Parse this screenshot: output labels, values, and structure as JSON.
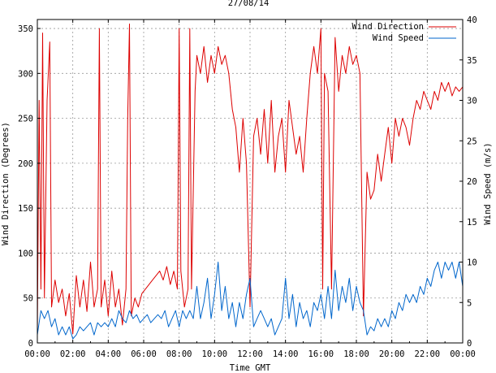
{
  "chart_data": {
    "type": "line",
    "title": "27/08/14",
    "xlabel": "Time GMT",
    "ylabel": "Wind Direction (Degrees)",
    "y2label": "Wind Speed (m/s)",
    "x_unit": "hours",
    "xlim": [
      0,
      24
    ],
    "ylim": [
      0,
      360
    ],
    "y2lim": [
      0,
      40
    ],
    "x_ticks": [
      "00:00",
      "02:00",
      "04:00",
      "06:00",
      "08:00",
      "10:00",
      "12:00",
      "14:00",
      "16:00",
      "18:00",
      "20:00",
      "22:00",
      "00:00"
    ],
    "y_ticks": [
      "0",
      "50",
      "100",
      "150",
      "200",
      "250",
      "300",
      "350"
    ],
    "y2_ticks": [
      "0",
      "5",
      "10",
      "15",
      "20",
      "25",
      "30",
      "35",
      "40"
    ],
    "grid": true,
    "legend_position": "top-right",
    "colors": {
      "direction": "#dd0000",
      "speed": "#0066cc",
      "grid": "#9a9a9a"
    },
    "series": [
      {
        "name": "Wind Direction",
        "axis": "left",
        "points": [
          [
            0.0,
            10
          ],
          [
            0.1,
            270
          ],
          [
            0.2,
            60
          ],
          [
            0.3,
            345
          ],
          [
            0.4,
            50
          ],
          [
            0.55,
            270
          ],
          [
            0.7,
            335
          ],
          [
            0.8,
            40
          ],
          [
            1.0,
            70
          ],
          [
            1.2,
            45
          ],
          [
            1.4,
            60
          ],
          [
            1.6,
            30
          ],
          [
            1.8,
            55
          ],
          [
            2.0,
            10
          ],
          [
            2.2,
            75
          ],
          [
            2.4,
            40
          ],
          [
            2.6,
            70
          ],
          [
            2.8,
            35
          ],
          [
            3.0,
            90
          ],
          [
            3.2,
            40
          ],
          [
            3.4,
            60
          ],
          [
            3.5,
            350
          ],
          [
            3.6,
            40
          ],
          [
            3.8,
            70
          ],
          [
            4.0,
            30
          ],
          [
            4.2,
            80
          ],
          [
            4.4,
            40
          ],
          [
            4.6,
            60
          ],
          [
            4.8,
            20
          ],
          [
            5.0,
            60
          ],
          [
            5.1,
            250
          ],
          [
            5.2,
            355
          ],
          [
            5.3,
            30
          ],
          [
            5.5,
            50
          ],
          [
            5.7,
            40
          ],
          [
            5.9,
            55
          ],
          [
            6.1,
            60
          ],
          [
            6.3,
            65
          ],
          [
            6.5,
            70
          ],
          [
            6.7,
            75
          ],
          [
            6.9,
            80
          ],
          [
            7.1,
            70
          ],
          [
            7.3,
            85
          ],
          [
            7.5,
            65
          ],
          [
            7.7,
            80
          ],
          [
            7.9,
            60
          ],
          [
            8.0,
            350
          ],
          [
            8.1,
            80
          ],
          [
            8.3,
            40
          ],
          [
            8.5,
            60
          ],
          [
            8.6,
            350
          ],
          [
            8.7,
            60
          ],
          [
            8.9,
            280
          ],
          [
            9.0,
            320
          ],
          [
            9.2,
            300
          ],
          [
            9.4,
            330
          ],
          [
            9.6,
            290
          ],
          [
            9.8,
            320
          ],
          [
            10.0,
            300
          ],
          [
            10.2,
            330
          ],
          [
            10.4,
            310
          ],
          [
            10.6,
            320
          ],
          [
            10.8,
            300
          ],
          [
            11.0,
            260
          ],
          [
            11.2,
            240
          ],
          [
            11.4,
            190
          ],
          [
            11.6,
            250
          ],
          [
            11.8,
            200
          ],
          [
            12.0,
            40
          ],
          [
            12.2,
            230
          ],
          [
            12.4,
            250
          ],
          [
            12.6,
            210
          ],
          [
            12.8,
            260
          ],
          [
            13.0,
            200
          ],
          [
            13.2,
            270
          ],
          [
            13.4,
            190
          ],
          [
            13.6,
            230
          ],
          [
            13.8,
            250
          ],
          [
            14.0,
            190
          ],
          [
            14.2,
            270
          ],
          [
            14.4,
            240
          ],
          [
            14.6,
            210
          ],
          [
            14.8,
            230
          ],
          [
            15.0,
            190
          ],
          [
            15.2,
            250
          ],
          [
            15.4,
            300
          ],
          [
            15.6,
            330
          ],
          [
            15.8,
            300
          ],
          [
            16.0,
            350
          ],
          [
            16.1,
            60
          ],
          [
            16.2,
            300
          ],
          [
            16.4,
            280
          ],
          [
            16.6,
            60
          ],
          [
            16.8,
            340
          ],
          [
            17.0,
            280
          ],
          [
            17.2,
            320
          ],
          [
            17.4,
            300
          ],
          [
            17.6,
            330
          ],
          [
            17.8,
            310
          ],
          [
            18.0,
            320
          ],
          [
            18.2,
            300
          ],
          [
            18.4,
            30
          ],
          [
            18.6,
            190
          ],
          [
            18.8,
            160
          ],
          [
            19.0,
            170
          ],
          [
            19.2,
            210
          ],
          [
            19.4,
            180
          ],
          [
            19.6,
            210
          ],
          [
            19.8,
            240
          ],
          [
            20.0,
            200
          ],
          [
            20.2,
            250
          ],
          [
            20.4,
            230
          ],
          [
            20.6,
            250
          ],
          [
            20.8,
            240
          ],
          [
            21.0,
            220
          ],
          [
            21.2,
            250
          ],
          [
            21.4,
            270
          ],
          [
            21.6,
            260
          ],
          [
            21.8,
            280
          ],
          [
            22.0,
            270
          ],
          [
            22.2,
            260
          ],
          [
            22.4,
            280
          ],
          [
            22.6,
            270
          ],
          [
            22.8,
            290
          ],
          [
            23.0,
            280
          ],
          [
            23.2,
            290
          ],
          [
            23.4,
            275
          ],
          [
            23.6,
            285
          ],
          [
            23.8,
            280
          ],
          [
            24.0,
            285
          ]
        ]
      },
      {
        "name": "Wind Speed",
        "axis": "right",
        "points": [
          [
            0.0,
            1
          ],
          [
            0.2,
            4
          ],
          [
            0.4,
            3
          ],
          [
            0.6,
            4
          ],
          [
            0.8,
            2
          ],
          [
            1.0,
            3
          ],
          [
            1.2,
            1
          ],
          [
            1.4,
            2
          ],
          [
            1.6,
            1
          ],
          [
            1.8,
            2
          ],
          [
            2.0,
            0.5
          ],
          [
            2.2,
            1
          ],
          [
            2.4,
            2
          ],
          [
            2.6,
            1.5
          ],
          [
            2.8,
            2
          ],
          [
            3.0,
            2.5
          ],
          [
            3.2,
            1
          ],
          [
            3.4,
            2.5
          ],
          [
            3.6,
            2
          ],
          [
            3.8,
            2.5
          ],
          [
            4.0,
            2
          ],
          [
            4.2,
            3
          ],
          [
            4.4,
            2
          ],
          [
            4.6,
            4
          ],
          [
            4.8,
            3
          ],
          [
            5.0,
            2.5
          ],
          [
            5.2,
            4
          ],
          [
            5.4,
            3
          ],
          [
            5.6,
            3.5
          ],
          [
            5.8,
            2.5
          ],
          [
            6.0,
            3
          ],
          [
            6.2,
            3.5
          ],
          [
            6.4,
            2.5
          ],
          [
            6.6,
            3
          ],
          [
            6.8,
            3.5
          ],
          [
            7.0,
            3
          ],
          [
            7.2,
            4
          ],
          [
            7.4,
            2
          ],
          [
            7.6,
            3
          ],
          [
            7.8,
            4
          ],
          [
            8.0,
            2
          ],
          [
            8.2,
            4
          ],
          [
            8.4,
            3
          ],
          [
            8.6,
            4
          ],
          [
            8.8,
            3
          ],
          [
            9.0,
            7
          ],
          [
            9.2,
            3
          ],
          [
            9.4,
            5
          ],
          [
            9.6,
            8
          ],
          [
            9.8,
            3
          ],
          [
            10.0,
            6
          ],
          [
            10.2,
            10
          ],
          [
            10.4,
            4
          ],
          [
            10.6,
            7
          ],
          [
            10.8,
            3
          ],
          [
            11.0,
            5
          ],
          [
            11.2,
            2
          ],
          [
            11.4,
            5
          ],
          [
            11.6,
            3
          ],
          [
            11.8,
            6
          ],
          [
            12.0,
            8
          ],
          [
            12.2,
            2
          ],
          [
            12.4,
            3
          ],
          [
            12.6,
            4
          ],
          [
            12.8,
            3
          ],
          [
            13.0,
            2
          ],
          [
            13.2,
            3
          ],
          [
            13.4,
            1
          ],
          [
            13.6,
            2
          ],
          [
            13.8,
            3
          ],
          [
            14.0,
            8
          ],
          [
            14.2,
            3
          ],
          [
            14.4,
            6
          ],
          [
            14.6,
            2
          ],
          [
            14.8,
            5
          ],
          [
            15.0,
            3
          ],
          [
            15.2,
            4
          ],
          [
            15.4,
            2
          ],
          [
            15.6,
            5
          ],
          [
            15.8,
            4
          ],
          [
            16.0,
            6
          ],
          [
            16.2,
            3
          ],
          [
            16.4,
            7
          ],
          [
            16.6,
            3
          ],
          [
            16.8,
            9
          ],
          [
            17.0,
            4
          ],
          [
            17.2,
            7
          ],
          [
            17.4,
            5
          ],
          [
            17.6,
            8
          ],
          [
            17.8,
            4
          ],
          [
            18.0,
            7
          ],
          [
            18.2,
            5
          ],
          [
            18.4,
            4
          ],
          [
            18.6,
            1
          ],
          [
            18.8,
            2
          ],
          [
            19.0,
            1.5
          ],
          [
            19.2,
            3
          ],
          [
            19.4,
            2
          ],
          [
            19.6,
            3
          ],
          [
            19.8,
            2
          ],
          [
            20.0,
            4
          ],
          [
            20.2,
            3
          ],
          [
            20.4,
            5
          ],
          [
            20.6,
            4
          ],
          [
            20.8,
            6
          ],
          [
            21.0,
            5
          ],
          [
            21.2,
            6
          ],
          [
            21.4,
            5
          ],
          [
            21.6,
            7
          ],
          [
            21.8,
            6
          ],
          [
            22.0,
            8
          ],
          [
            22.2,
            7
          ],
          [
            22.4,
            9
          ],
          [
            22.6,
            10
          ],
          [
            22.8,
            8
          ],
          [
            23.0,
            10
          ],
          [
            23.2,
            9
          ],
          [
            23.4,
            10
          ],
          [
            23.6,
            8
          ],
          [
            23.8,
            10
          ],
          [
            24.0,
            7
          ]
        ]
      }
    ]
  }
}
